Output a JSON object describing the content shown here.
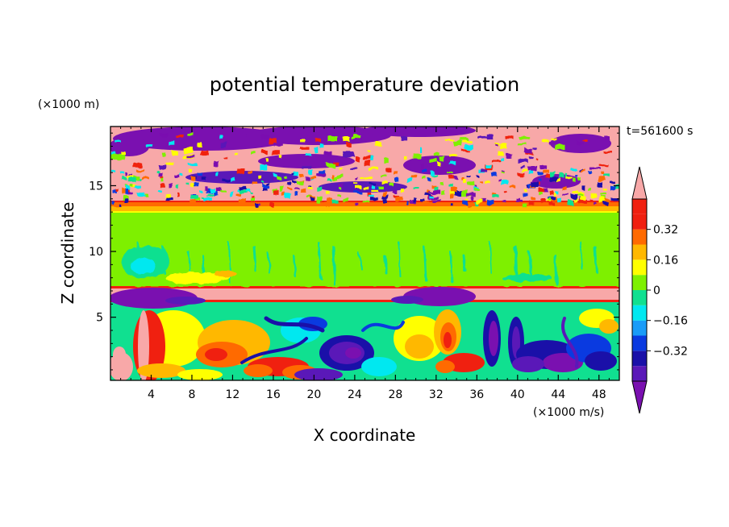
{
  "chart_data": {
    "type": "heatmap",
    "title": "potential temperature deviation",
    "xlabel": "X coordinate",
    "ylabel": "Z coordinate",
    "x_unit_label": "(×1000 m/s)",
    "y_unit_label": "(×1000 m)",
    "time_label": "t=561600 s",
    "xlim": [
      0,
      50
    ],
    "ylim": [
      0.2,
      19.5
    ],
    "x_ticks": [
      4,
      8,
      12,
      16,
      20,
      24,
      28,
      32,
      36,
      40,
      44,
      48
    ],
    "y_ticks": [
      5,
      10,
      15
    ],
    "x_tick_labels": [
      "4",
      "8",
      "12",
      "16",
      "20",
      "24",
      "28",
      "32",
      "36",
      "40",
      "44",
      "48"
    ],
    "y_tick_labels": [
      "5",
      "10",
      "15"
    ],
    "colorbar": {
      "levels": [
        -0.48,
        -0.4,
        -0.32,
        -0.24,
        -0.16,
        -0.08,
        0,
        0.08,
        0.16,
        0.24,
        0.32,
        0.4,
        0.48
      ],
      "colors": [
        "#7a10b0",
        "#5a18b8",
        "#1a10a8",
        "#0a3ae0",
        "#1a9cf8",
        "#00e8f0",
        "#10e090",
        "#7ef000",
        "#ffff00",
        "#ffb800",
        "#ff6a00",
        "#f02010",
        "#f8a8a8"
      ],
      "tick_labels": [
        "0.32",
        "0.16",
        "0",
        "−0.16",
        "−0.32"
      ],
      "tick_values": [
        0.32,
        0.16,
        0,
        -0.16,
        -0.32
      ],
      "extend": "both"
    }
  }
}
